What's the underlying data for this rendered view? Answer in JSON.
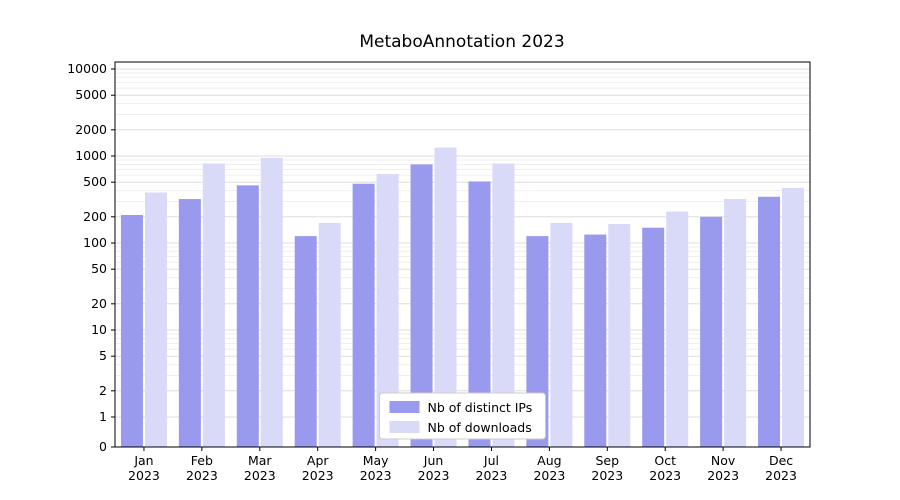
{
  "title": "MetaboAnnotation 2023",
  "chart_data": {
    "type": "bar",
    "title": "MetaboAnnotation 2023",
    "xlabel": "",
    "ylabel": "",
    "yscale": "symlog",
    "grid": true,
    "legend_position": "lower center",
    "categories": [
      "Jan",
      "Feb",
      "Mar",
      "Apr",
      "May",
      "Jun",
      "Jul",
      "Aug",
      "Sep",
      "Oct",
      "Nov",
      "Dec"
    ],
    "category_year": "2023",
    "yticks": [
      0,
      1,
      2,
      5,
      10,
      20,
      50,
      100,
      200,
      500,
      1000,
      2000,
      5000,
      10000
    ],
    "ylim": [
      0,
      13000
    ],
    "series": [
      {
        "name": "Nb of distinct IPs",
        "color": "#9999ee",
        "values": [
          210,
          320,
          460,
          120,
          480,
          800,
          510,
          120,
          125,
          150,
          200,
          340
        ]
      },
      {
        "name": "Nb of downloads",
        "color": "#d9d9f8",
        "values": [
          380,
          820,
          950,
          170,
          620,
          1250,
          820,
          170,
          165,
          230,
          320,
          430
        ]
      }
    ],
    "colors": {
      "axis": "#000000",
      "grid_major": "#dedede",
      "grid_minor": "#efefef",
      "legend_border": "#cccccc",
      "legend_bg": "#ffffff"
    }
  }
}
